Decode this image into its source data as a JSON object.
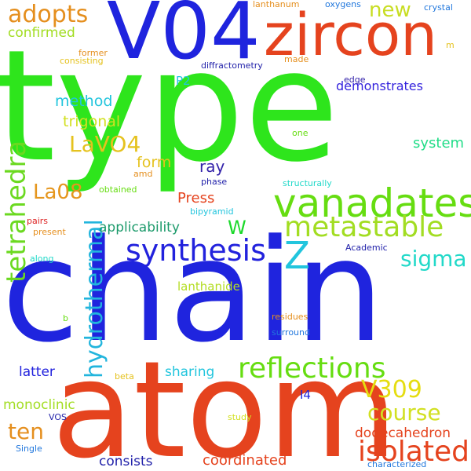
{
  "words": [
    {
      "text": "type",
      "color": "#2ee51c"
    },
    {
      "text": "chain",
      "color": "#1f24de"
    },
    {
      "text": "atom",
      "color": "#e5431e"
    },
    {
      "text": "V04",
      "color": "#1f24de"
    },
    {
      "text": "zircon",
      "color": "#e5431e"
    },
    {
      "text": "vanadates",
      "color": "#66dd11"
    },
    {
      "text": "metastable",
      "color": "#a2dd22"
    },
    {
      "text": "synthesis",
      "color": "#2222dd"
    },
    {
      "text": "tetrahedra",
      "color": "#6bd920"
    },
    {
      "text": "reflections",
      "color": "#66dd11"
    },
    {
      "text": "hydrothermal",
      "color": "#22b5dd"
    },
    {
      "text": "isolated",
      "color": "#e5431e"
    },
    {
      "text": "sigma",
      "color": "#22d9c9"
    },
    {
      "text": "Z",
      "color": "#22c5dd"
    },
    {
      "text": "adopts",
      "color": "#e58f1e"
    },
    {
      "text": "new",
      "color": "#c8dd22"
    },
    {
      "text": "LaVO4",
      "color": "#e5c21e"
    },
    {
      "text": "La08",
      "color": "#e5961e"
    },
    {
      "text": "V309",
      "color": "#e5dd11"
    },
    {
      "text": "course",
      "color": "#d2e022"
    },
    {
      "text": "ten",
      "color": "#e58f1e"
    },
    {
      "text": "W",
      "color": "#1cd92b"
    },
    {
      "text": "confirmed",
      "color": "#a2dd22"
    },
    {
      "text": "demonstrates",
      "color": "#3322dd"
    },
    {
      "text": "method",
      "color": "#22c5dd"
    },
    {
      "text": "trigonal",
      "color": "#d2e022"
    },
    {
      "text": "system",
      "color": "#22dd88"
    },
    {
      "text": "form",
      "color": "#e5c21e"
    },
    {
      "text": "ray",
      "color": "#3322aa"
    },
    {
      "text": "Press",
      "color": "#e5431e"
    },
    {
      "text": "applicability",
      "color": "#1c9a6b"
    },
    {
      "text": "lanthanide",
      "color": "#b3dd22"
    },
    {
      "text": "sharing",
      "color": "#22c5dd"
    },
    {
      "text": "latter",
      "color": "#2222dd"
    },
    {
      "text": "monoclinic",
      "color": "#a2dd22"
    },
    {
      "text": "dodecahedron",
      "color": "#e5431e"
    },
    {
      "text": "consists",
      "color": "#2222aa"
    },
    {
      "text": "coordinated",
      "color": "#e5431e"
    },
    {
      "text": "I4",
      "color": "#1f24de"
    },
    {
      "text": "P2",
      "color": "#22c5dd"
    },
    {
      "text": "lanthanum",
      "color": "#e58f1e"
    },
    {
      "text": "oxygens",
      "color": "#2278dd"
    },
    {
      "text": "crystal",
      "color": "#2278dd"
    },
    {
      "text": "former",
      "color": "#e58f1e"
    },
    {
      "text": "consisting",
      "color": "#e5c21e"
    },
    {
      "text": "diffractometry",
      "color": "#2222aa"
    },
    {
      "text": "made",
      "color": "#e58f1e"
    },
    {
      "text": "m",
      "color": "#e5c21e"
    },
    {
      "text": "edge",
      "color": "#3322aa"
    },
    {
      "text": "one",
      "color": "#66dd11"
    },
    {
      "text": "amd",
      "color": "#e58f1e"
    },
    {
      "text": "obtained",
      "color": "#66dd11"
    },
    {
      "text": "phase",
      "color": "#2222aa"
    },
    {
      "text": "structurally",
      "color": "#22d9c9"
    },
    {
      "text": "bipyramid",
      "color": "#22c5dd"
    },
    {
      "text": "pairs",
      "color": "#dd2222"
    },
    {
      "text": "present",
      "color": "#e58f1e"
    },
    {
      "text": "along",
      "color": "#22d9c9"
    },
    {
      "text": "Academic",
      "color": "#2222aa"
    },
    {
      "text": "b",
      "color": "#66dd11"
    },
    {
      "text": "residues",
      "color": "#e58f1e"
    },
    {
      "text": "surround",
      "color": "#2278dd"
    },
    {
      "text": "beta",
      "color": "#e5c21e"
    },
    {
      "text": "VOS",
      "color": "#2222aa"
    },
    {
      "text": "study",
      "color": "#d2e022"
    },
    {
      "text": "Single",
      "color": "#2278dd"
    },
    {
      "text": "characterized",
      "color": "#2278dd"
    }
  ]
}
